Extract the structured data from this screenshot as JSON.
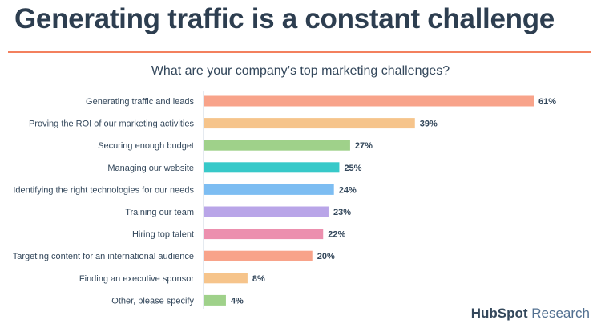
{
  "headline": "Generating traffic is a constant challenge",
  "brand": {
    "name": "HubSpot",
    "suffix": " Research"
  },
  "chart_data": {
    "type": "bar",
    "orientation": "horizontal",
    "title": "What are your company’s top marketing challenges?",
    "categories": [
      "Generating traffic and leads",
      "Proving the ROI of our marketing activities",
      "Securing enough budget",
      "Managing our website",
      "Identifying the right technologies for our needs",
      "Training our team",
      "Hiring top talent",
      "Targeting content for an international audience",
      "Finding an executive sponsor",
      "Other, please specify"
    ],
    "values": [
      61,
      39,
      27,
      25,
      24,
      23,
      22,
      20,
      8,
      4
    ],
    "value_labels": [
      "61%",
      "39%",
      "27%",
      "25%",
      "24%",
      "23%",
      "22%",
      "20%",
      "8%",
      "4%"
    ],
    "colors": [
      "#f8a38a",
      "#f6c48b",
      "#9fd18a",
      "#37c9c9",
      "#7dbdf2",
      "#b9a5e8",
      "#ec8fae",
      "#f8a38a",
      "#f6c48b",
      "#9fd18a"
    ],
    "xlim": [
      0,
      61
    ],
    "grid": false,
    "legend": "none"
  }
}
